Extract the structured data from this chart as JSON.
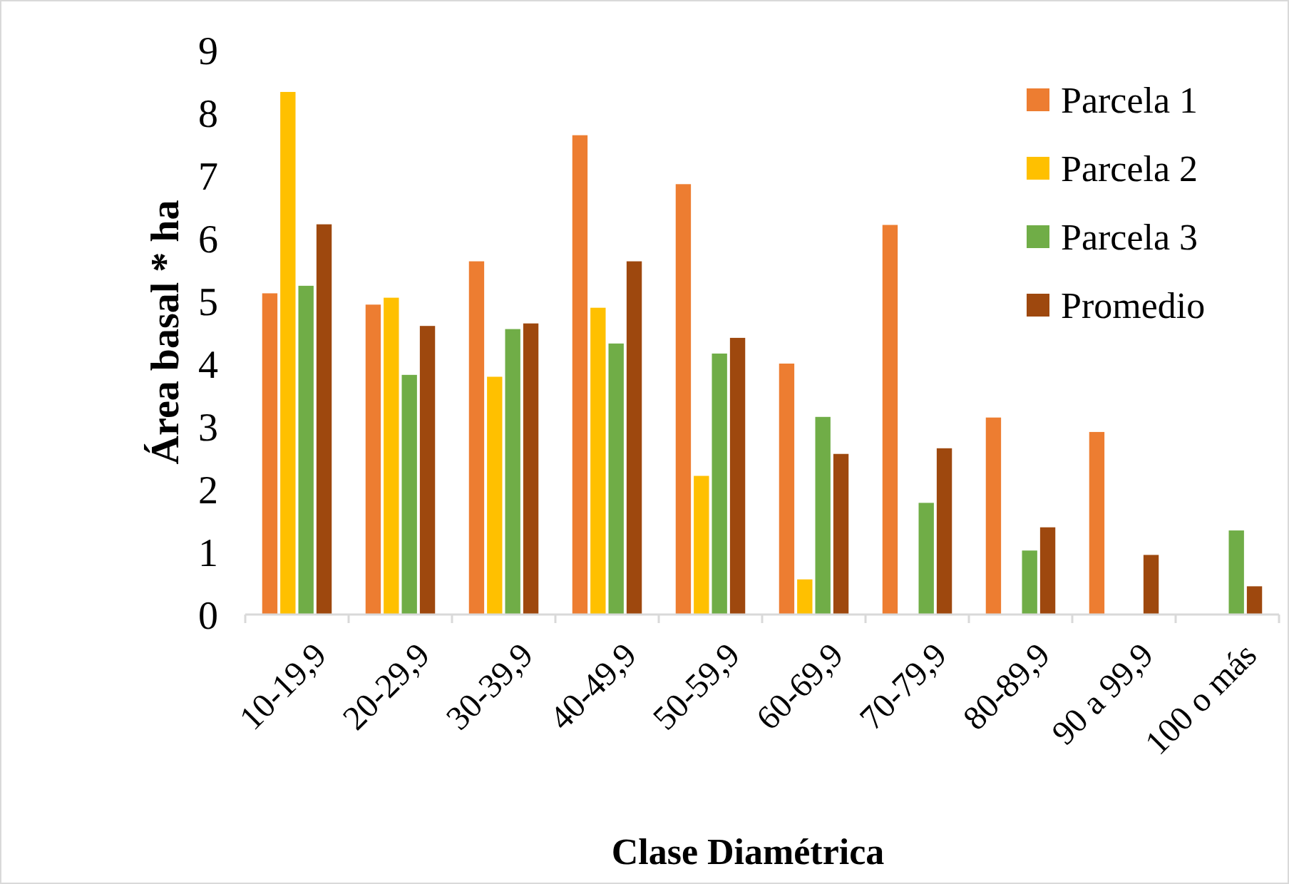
{
  "chart_data": {
    "type": "bar",
    "xlabel": "Clase Diamétrica",
    "ylabel": "Área basal * ha",
    "categories": [
      "10-19,9",
      "20-29,9",
      "30-39,9",
      "40-49,9",
      "50-59,9",
      "60-69,9",
      "70-79,9",
      "80-89,9",
      "90 a 99,9",
      "100 o más"
    ],
    "series": [
      {
        "name": "Parcela 1",
        "color": "#ed7d31",
        "values": [
          5.12,
          4.94,
          5.63,
          7.64,
          6.86,
          4.0,
          6.21,
          3.14,
          2.91,
          null
        ]
      },
      {
        "name": "Parcela 2",
        "color": "#ffc000",
        "values": [
          8.33,
          5.05,
          3.79,
          4.89,
          2.21,
          0.56,
          null,
          null,
          null,
          null
        ]
      },
      {
        "name": "Parcela 3",
        "color": "#70ad47",
        "values": [
          5.24,
          3.82,
          4.55,
          4.32,
          4.16,
          3.15,
          1.78,
          1.02,
          null,
          1.34
        ]
      },
      {
        "name": "Promedio",
        "color": "#9e480e",
        "values": [
          6.22,
          4.6,
          4.64,
          5.63,
          4.41,
          2.56,
          2.65,
          1.39,
          0.95,
          0.45
        ]
      }
    ],
    "ylim": [
      0,
      9
    ],
    "yticks": [
      0,
      1,
      2,
      3,
      4,
      5,
      6,
      7,
      8,
      9
    ],
    "grid": false,
    "legend": "top right"
  }
}
